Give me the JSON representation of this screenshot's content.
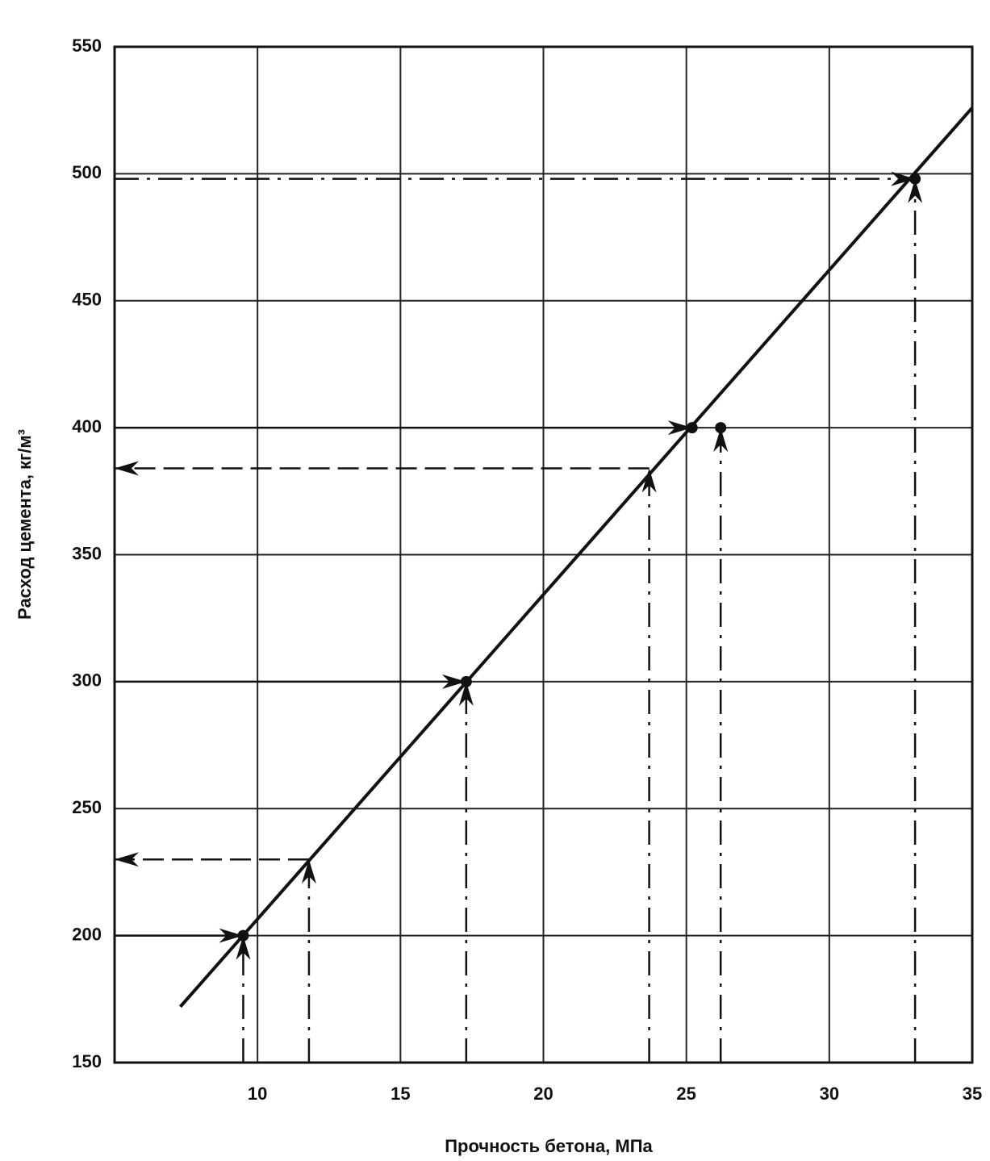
{
  "chart_data": {
    "type": "line",
    "x_label": "Прочность бетона, МПа",
    "y_label": "Расход цемента, кг/м³",
    "xlim": [
      5,
      35
    ],
    "xticks": [
      10,
      15,
      20,
      25,
      30,
      35
    ],
    "ylim": [
      150,
      550
    ],
    "yticks": [
      150,
      200,
      250,
      300,
      350,
      400,
      450,
      500,
      550
    ],
    "grid": true,
    "color": "#111",
    "series": [
      {
        "x": [
          7.3,
          35
        ],
        "values": [
          172,
          526
        ]
      }
    ],
    "points": {
      "x": [
        9.5,
        17.3,
        25.2,
        26.2,
        33
      ],
      "values": [
        200,
        300,
        400,
        400,
        498
      ]
    },
    "guides": [
      {
        "style": "dashdot",
        "x": [
          9.5,
          9.5
        ],
        "values": [
          150,
          200
        ]
      },
      {
        "style": "solid",
        "x": [
          5,
          9.5
        ],
        "values": [
          200,
          200
        ]
      },
      {
        "style": "dashdot",
        "x": [
          11.8,
          11.8
        ],
        "values": [
          150,
          230
        ]
      },
      {
        "style": "dashed",
        "x": [
          11.8,
          5
        ],
        "values": [
          230,
          230
        ]
      },
      {
        "style": "dashdot",
        "x": [
          17.3,
          17.3
        ],
        "values": [
          150,
          300
        ]
      },
      {
        "style": "solid",
        "x": [
          5,
          17.3
        ],
        "values": [
          300,
          300
        ]
      },
      {
        "style": "dashdot",
        "x": [
          23.7,
          23.7
        ],
        "values": [
          150,
          384
        ]
      },
      {
        "style": "dashed",
        "x": [
          23.7,
          5
        ],
        "values": [
          384,
          384
        ]
      },
      {
        "style": "dashdot",
        "x": [
          26.2,
          26.2
        ],
        "values": [
          150,
          400
        ]
      },
      {
        "style": "solid",
        "x": [
          5,
          25.2
        ],
        "values": [
          400,
          400
        ]
      },
      {
        "style": "dashdot",
        "x": [
          33,
          33
        ],
        "values": [
          150,
          498
        ]
      },
      {
        "style": "dashdot",
        "x": [
          5,
          33
        ],
        "values": [
          498,
          498
        ]
      }
    ]
  }
}
